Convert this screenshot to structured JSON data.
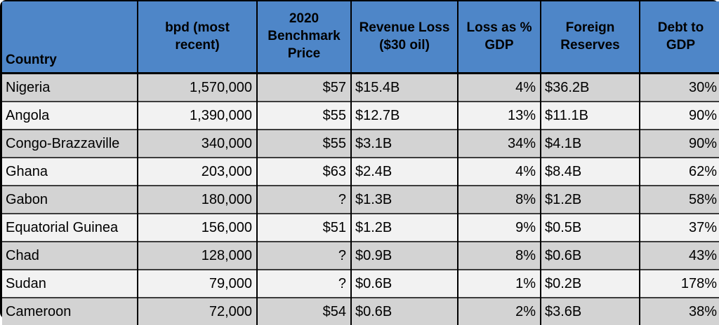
{
  "colors": {
    "header_bg": "#4E86C8",
    "row_odd": "#D3D3D3",
    "row_even": "#F2F2F2",
    "grid_line": "#000000",
    "row_line": "#3C3C3C",
    "frame": "#000000",
    "text": "#000000"
  },
  "chart_data": {
    "type": "table",
    "title": "",
    "columns": [
      {
        "id": "country",
        "label": "Country"
      },
      {
        "id": "bpd",
        "label": "bpd (most\nrecent)"
      },
      {
        "id": "benchmark-price",
        "label": "2020\nBenchmark\nPrice"
      },
      {
        "id": "revenue-loss",
        "label": "Revenue Loss\n($30 oil)"
      },
      {
        "id": "loss-pct-gdp",
        "label": "Loss as %\nGDP"
      },
      {
        "id": "foreign-reserves",
        "label": "Foreign\nReserves"
      },
      {
        "id": "debt-to-gdp",
        "label": "Debt to\nGDP"
      }
    ],
    "rows": [
      [
        "Nigeria",
        "1,570,000",
        "$57",
        "$15.4B",
        "4%",
        "$36.2B",
        "30%"
      ],
      [
        "Angola",
        "1,390,000",
        "$55",
        "$12.7B",
        "13%",
        "$11.1B",
        "90%"
      ],
      [
        "Congo-Brazzaville",
        "340,000",
        "$55",
        "$3.1B",
        "34%",
        "$4.1B",
        "90%"
      ],
      [
        "Ghana",
        "203,000",
        "$63",
        "$2.4B",
        "4%",
        "$8.4B",
        "62%"
      ],
      [
        "Gabon",
        "180,000",
        "?",
        "$1.3B",
        "8%",
        "$1.2B",
        "58%"
      ],
      [
        "Equatorial Guinea",
        "156,000",
        "$51",
        "$1.2B",
        "9%",
        "$0.5B",
        "37%"
      ],
      [
        "Chad",
        "128,000",
        "?",
        "$0.9B",
        "8%",
        "$0.6B",
        "43%"
      ],
      [
        "Sudan",
        "79,000",
        "?",
        "$0.6B",
        "1%",
        "$0.2B",
        "178%"
      ],
      [
        "Cameroon",
        "72,000",
        "$54",
        "$0.6B",
        "2%",
        "$3.6B",
        "38%"
      ]
    ]
  }
}
